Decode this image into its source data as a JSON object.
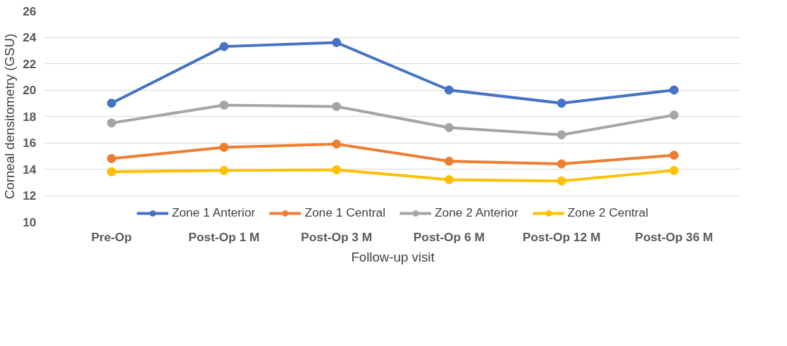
{
  "chart_data": {
    "type": "line",
    "xlabel": "Follow-up visit",
    "ylabel": "Corneal densitometry (GSU)",
    "categories": [
      "Pre-Op",
      "Post-Op 1 M",
      "Post-Op 3 M",
      "Post-Op 6 M",
      "Post-Op 12 M",
      "Post-Op 36 M"
    ],
    "series": [
      {
        "name": "Zone 1 Anterior",
        "color": "#4472c4",
        "values": [
          19.0,
          23.3,
          23.6,
          20.0,
          19.0,
          20.0
        ]
      },
      {
        "name": "Zone 1 Central",
        "color": "#ed7d31",
        "values": [
          14.8,
          15.65,
          15.9,
          14.6,
          14.4,
          15.05
        ]
      },
      {
        "name": "Zone 2 Anterior",
        "color": "#a5a5a5",
        "values": [
          17.5,
          18.85,
          18.75,
          17.15,
          16.6,
          18.1
        ]
      },
      {
        "name": "Zone 2 Central",
        "color": "#ffc000",
        "values": [
          13.8,
          13.9,
          13.95,
          13.2,
          13.1,
          13.9
        ]
      }
    ],
    "ylim": [
      10,
      26
    ],
    "yticks": [
      10,
      12,
      14,
      16,
      18,
      20,
      22,
      24,
      26
    ],
    "grid": "y",
    "legend": "bottom",
    "marker": "circle",
    "line_style": "solid"
  }
}
